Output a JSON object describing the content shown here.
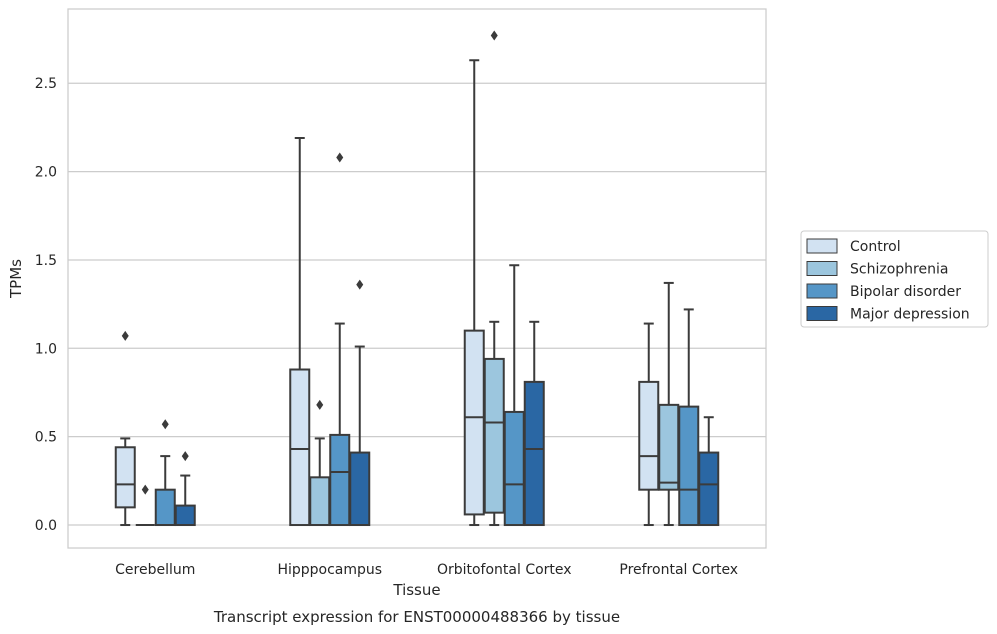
{
  "chart_data": {
    "type": "box",
    "caption": "Transcript expression for ENST00000488366 by tissue",
    "xlabel": "Tissue",
    "ylabel": "TPMs",
    "ylim": [
      -0.13,
      2.92
    ],
    "yticks": [
      "0.0",
      "0.5",
      "1.0",
      "1.5",
      "2.0",
      "2.5"
    ],
    "grid": true,
    "legend_position": "right",
    "categories": [
      "Cerebellum",
      "Hipppocampus",
      "Orbitofontal Cortex",
      "Prefrontal Cortex"
    ],
    "series": [
      {
        "name": "Control",
        "color": "#d2e2f2",
        "boxes": [
          {
            "min": 0.0,
            "q1": 0.1,
            "median": 0.23,
            "q3": 0.44,
            "max": 0.49,
            "outliers": [
              1.07
            ]
          },
          {
            "min": 0.0,
            "q1": 0.0,
            "median": 0.43,
            "q3": 0.88,
            "max": 2.19,
            "outliers": []
          },
          {
            "min": 0.0,
            "q1": 0.06,
            "median": 0.61,
            "q3": 1.1,
            "max": 2.63,
            "outliers": []
          },
          {
            "min": 0.0,
            "q1": 0.2,
            "median": 0.39,
            "q3": 0.81,
            "max": 1.14,
            "outliers": []
          }
        ]
      },
      {
        "name": "Schizophrenia",
        "color": "#9cc6de",
        "boxes": [
          {
            "min": 0.0,
            "q1": 0.0,
            "median": 0.0,
            "q3": 0.0,
            "max": 0.0,
            "outliers": [
              0.2
            ]
          },
          {
            "min": 0.0,
            "q1": 0.0,
            "median": 0.0,
            "q3": 0.27,
            "max": 0.49,
            "outliers": [
              0.68
            ]
          },
          {
            "min": 0.0,
            "q1": 0.07,
            "median": 0.58,
            "q3": 0.94,
            "max": 1.15,
            "outliers": [
              2.77
            ]
          },
          {
            "min": 0.0,
            "q1": 0.2,
            "median": 0.24,
            "q3": 0.68,
            "max": 1.37,
            "outliers": []
          }
        ]
      },
      {
        "name": "Bipolar disorder",
        "color": "#5596c7",
        "boxes": [
          {
            "min": 0.0,
            "q1": 0.0,
            "median": 0.0,
            "q3": 0.2,
            "max": 0.39,
            "outliers": [
              0.57
            ]
          },
          {
            "min": 0.0,
            "q1": 0.0,
            "median": 0.3,
            "q3": 0.51,
            "max": 1.14,
            "outliers": [
              2.08
            ]
          },
          {
            "min": 0.0,
            "q1": 0.0,
            "median": 0.23,
            "q3": 0.64,
            "max": 1.47,
            "outliers": []
          },
          {
            "min": 0.0,
            "q1": 0.0,
            "median": 0.2,
            "q3": 0.67,
            "max": 1.22,
            "outliers": []
          }
        ]
      },
      {
        "name": "Major depression",
        "color": "#2a67a4",
        "boxes": [
          {
            "min": 0.0,
            "q1": 0.0,
            "median": 0.0,
            "q3": 0.11,
            "max": 0.28,
            "outliers": [
              0.39
            ]
          },
          {
            "min": 0.0,
            "q1": 0.0,
            "median": 0.0,
            "q3": 0.41,
            "max": 1.01,
            "outliers": [
              1.36
            ]
          },
          {
            "min": 0.0,
            "q1": 0.0,
            "median": 0.43,
            "q3": 0.81,
            "max": 1.15,
            "outliers": []
          },
          {
            "min": 0.0,
            "q1": 0.0,
            "median": 0.23,
            "q3": 0.41,
            "max": 0.61,
            "outliers": []
          }
        ]
      }
    ]
  }
}
